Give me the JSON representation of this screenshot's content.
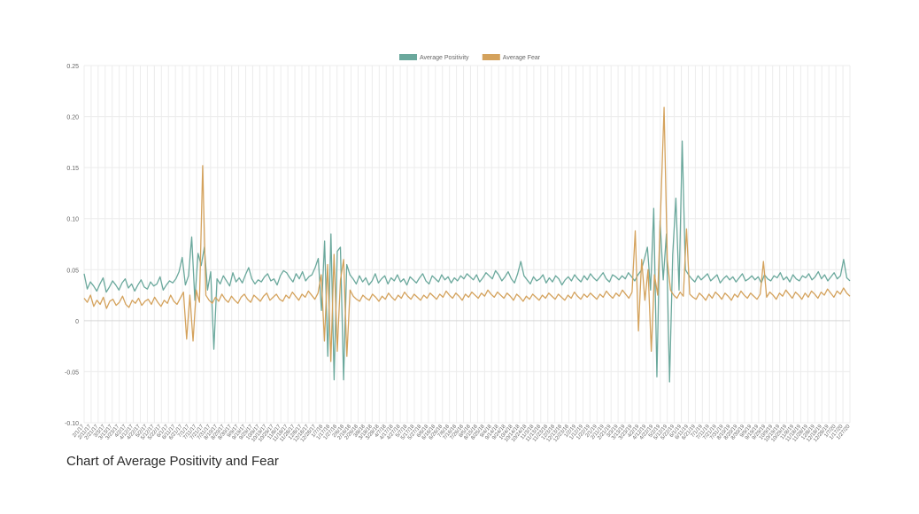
{
  "caption": "Chart of Average Positivity and Fear",
  "chart_data": {
    "type": "line",
    "legend_position": "top-center",
    "grid": true,
    "ylim": [
      -0.1,
      0.25
    ],
    "yticks": [
      "0.25",
      "0.20",
      "0.15",
      "0.10",
      "0.05",
      "0",
      "-0.05",
      "-0.10"
    ],
    "ytick_values": [
      0.25,
      0.2,
      0.15,
      0.1,
      0.05,
      0,
      -0.05,
      -0.1
    ],
    "xticks": [
      "2/1/17",
      "2/11/17",
      "2/21/17",
      "3/3/17",
      "3/13/17",
      "3/23/17",
      "4/2/17",
      "4/12/17",
      "4/22/17",
      "5/2/17",
      "5/12/17",
      "5/22/17",
      "6/1/17",
      "6/11/17",
      "6/21/17",
      "7/1/17",
      "7/11/17",
      "7/21/17",
      "7/31/17",
      "8/10/17",
      "8/20/17",
      "8/30/17",
      "9/9/17",
      "9/19/17",
      "9/29/17",
      "10/9/17",
      "10/19/17",
      "10/29/17",
      "11/8/17",
      "11/18/17",
      "11/28/17",
      "12/8/17",
      "12/18/17",
      "12/28/17",
      "1/7/18",
      "1/17/18",
      "1/27/18",
      "2/6/18",
      "2/16/18",
      "2/26/18",
      "3/8/18",
      "3/18/18",
      "3/28/18",
      "4/7/18",
      "4/17/18",
      "4/27/18",
      "5/7/18",
      "5/17/18",
      "5/27/18",
      "6/6/18",
      "6/16/18",
      "6/26/18",
      "7/6/18",
      "7/16/18",
      "7/26/18",
      "8/5/18",
      "8/15/18",
      "8/25/18",
      "9/4/18",
      "9/14/18",
      "9/24/18",
      "10/4/18",
      "10/14/18",
      "10/24/18",
      "11/3/18",
      "11/13/18",
      "11/23/18",
      "12/3/18",
      "12/13/18",
      "12/23/18",
      "1/2/19",
      "1/12/19",
      "1/22/19",
      "2/1/19",
      "2/11/19",
      "2/21/19",
      "3/3/19",
      "3/13/19",
      "3/23/19",
      "4/2/19",
      "4/12/19",
      "4/22/19",
      "5/2/19",
      "5/12/19",
      "5/22/19",
      "6/1/19",
      "6/11/19",
      "6/21/19",
      "7/1/19",
      "7/11/19",
      "7/21/19",
      "7/31/19",
      "8/10/19",
      "8/20/19",
      "8/30/19",
      "9/9/19",
      "9/19/19",
      "9/29/19",
      "10/9/19",
      "10/19/19",
      "10/29/19",
      "11/8/19",
      "11/18/19",
      "11/28/19",
      "12/8/19",
      "12/18/19",
      "12/28/19",
      "1/7/20",
      "1/17/20",
      "1/27/20"
    ],
    "series": [
      {
        "name": "Average Positivity",
        "color": "#6aa89c",
        "values": [
          0.046,
          0.031,
          0.038,
          0.034,
          0.029,
          0.036,
          0.042,
          0.028,
          0.033,
          0.039,
          0.035,
          0.03,
          0.037,
          0.041,
          0.032,
          0.036,
          0.029,
          0.035,
          0.04,
          0.033,
          0.031,
          0.038,
          0.034,
          0.036,
          0.043,
          0.03,
          0.035,
          0.039,
          0.037,
          0.041,
          0.048,
          0.062,
          0.035,
          0.044,
          0.082,
          0.02,
          0.066,
          0.054,
          0.072,
          0.03,
          0.048,
          -0.028,
          0.041,
          0.036,
          0.044,
          0.039,
          0.034,
          0.047,
          0.038,
          0.042,
          0.037,
          0.045,
          0.052,
          0.041,
          0.036,
          0.04,
          0.038,
          0.043,
          0.046,
          0.039,
          0.041,
          0.035,
          0.044,
          0.049,
          0.047,
          0.042,
          0.038,
          0.046,
          0.041,
          0.048,
          0.039,
          0.043,
          0.045,
          0.052,
          0.061,
          0.01,
          0.078,
          -0.035,
          0.085,
          -0.058,
          0.068,
          0.072,
          -0.058,
          0.055,
          0.045,
          0.041,
          0.036,
          0.044,
          0.038,
          0.042,
          0.035,
          0.039,
          0.046,
          0.037,
          0.041,
          0.044,
          0.036,
          0.042,
          0.039,
          0.045,
          0.038,
          0.041,
          0.035,
          0.043,
          0.04,
          0.037,
          0.042,
          0.046,
          0.039,
          0.036,
          0.044,
          0.041,
          0.038,
          0.045,
          0.04,
          0.043,
          0.037,
          0.042,
          0.039,
          0.044,
          0.041,
          0.046,
          0.043,
          0.04,
          0.045,
          0.038,
          0.042,
          0.047,
          0.044,
          0.041,
          0.049,
          0.045,
          0.039,
          0.043,
          0.048,
          0.041,
          0.037,
          0.046,
          0.058,
          0.044,
          0.04,
          0.036,
          0.043,
          0.039,
          0.041,
          0.045,
          0.037,
          0.042,
          0.038,
          0.044,
          0.041,
          0.035,
          0.04,
          0.043,
          0.039,
          0.045,
          0.041,
          0.038,
          0.044,
          0.04,
          0.046,
          0.042,
          0.039,
          0.043,
          0.047,
          0.041,
          0.038,
          0.045,
          0.043,
          0.04,
          0.044,
          0.041,
          0.047,
          0.043,
          0.039,
          0.045,
          0.049,
          0.06,
          0.072,
          0.03,
          0.11,
          -0.055,
          0.098,
          0.04,
          0.085,
          -0.06,
          0.065,
          0.12,
          0.03,
          0.176,
          0.05,
          0.045,
          0.041,
          0.038,
          0.044,
          0.04,
          0.043,
          0.046,
          0.039,
          0.042,
          0.045,
          0.037,
          0.041,
          0.044,
          0.04,
          0.043,
          0.038,
          0.042,
          0.046,
          0.039,
          0.041,
          0.044,
          0.04,
          0.043,
          0.037,
          0.045,
          0.041,
          0.039,
          0.044,
          0.042,
          0.047,
          0.04,
          0.043,
          0.038,
          0.045,
          0.041,
          0.039,
          0.044,
          0.042,
          0.046,
          0.04,
          0.043,
          0.048,
          0.041,
          0.045,
          0.039,
          0.043,
          0.047,
          0.041,
          0.044,
          0.06,
          0.042,
          0.039
        ]
      },
      {
        "name": "Average Fear",
        "color": "#d4a25c",
        "values": [
          0.022,
          0.018,
          0.025,
          0.014,
          0.02,
          0.016,
          0.023,
          0.012,
          0.019,
          0.021,
          0.015,
          0.018,
          0.024,
          0.016,
          0.013,
          0.02,
          0.017,
          0.022,
          0.015,
          0.019,
          0.021,
          0.016,
          0.023,
          0.018,
          0.014,
          0.02,
          0.017,
          0.025,
          0.019,
          0.016,
          0.022,
          0.028,
          -0.018,
          0.025,
          -0.02,
          0.03,
          0.018,
          0.152,
          0.025,
          0.02,
          0.017,
          0.023,
          0.019,
          0.026,
          0.021,
          0.018,
          0.024,
          0.02,
          0.017,
          0.023,
          0.026,
          0.021,
          0.018,
          0.025,
          0.022,
          0.019,
          0.024,
          0.027,
          0.02,
          0.023,
          0.026,
          0.021,
          0.019,
          0.025,
          0.022,
          0.028,
          0.024,
          0.02,
          0.026,
          0.023,
          0.029,
          0.025,
          0.021,
          0.027,
          0.045,
          -0.02,
          0.055,
          -0.04,
          0.065,
          -0.03,
          0.04,
          0.06,
          -0.035,
          0.03,
          0.024,
          0.021,
          0.019,
          0.025,
          0.022,
          0.02,
          0.026,
          0.023,
          0.019,
          0.024,
          0.021,
          0.027,
          0.023,
          0.02,
          0.025,
          0.022,
          0.028,
          0.024,
          0.021,
          0.026,
          0.023,
          0.02,
          0.025,
          0.022,
          0.027,
          0.024,
          0.021,
          0.026,
          0.023,
          0.029,
          0.025,
          0.022,
          0.027,
          0.024,
          0.02,
          0.026,
          0.023,
          0.028,
          0.025,
          0.022,
          0.027,
          0.024,
          0.03,
          0.026,
          0.023,
          0.028,
          0.025,
          0.022,
          0.027,
          0.024,
          0.02,
          0.026,
          0.023,
          0.019,
          0.024,
          0.021,
          0.026,
          0.023,
          0.02,
          0.025,
          0.022,
          0.027,
          0.024,
          0.021,
          0.026,
          0.023,
          0.02,
          0.025,
          0.022,
          0.028,
          0.024,
          0.021,
          0.026,
          0.023,
          0.027,
          0.024,
          0.021,
          0.026,
          0.023,
          0.029,
          0.025,
          0.022,
          0.027,
          0.024,
          0.03,
          0.026,
          0.022,
          0.028,
          0.088,
          -0.01,
          0.06,
          0.02,
          0.05,
          -0.03,
          0.045,
          0.025,
          0.115,
          0.209,
          0.06,
          0.03,
          0.025,
          0.022,
          0.028,
          0.024,
          0.09,
          0.026,
          0.023,
          0.021,
          0.027,
          0.024,
          0.02,
          0.026,
          0.022,
          0.028,
          0.025,
          0.021,
          0.027,
          0.024,
          0.02,
          0.026,
          0.023,
          0.029,
          0.025,
          0.022,
          0.027,
          0.024,
          0.021,
          0.026,
          0.058,
          0.023,
          0.028,
          0.025,
          0.021,
          0.027,
          0.024,
          0.03,
          0.026,
          0.022,
          0.028,
          0.025,
          0.021,
          0.027,
          0.023,
          0.029,
          0.026,
          0.022,
          0.028,
          0.025,
          0.031,
          0.027,
          0.023,
          0.029,
          0.026,
          0.032,
          0.027,
          0.024
        ]
      }
    ]
  }
}
